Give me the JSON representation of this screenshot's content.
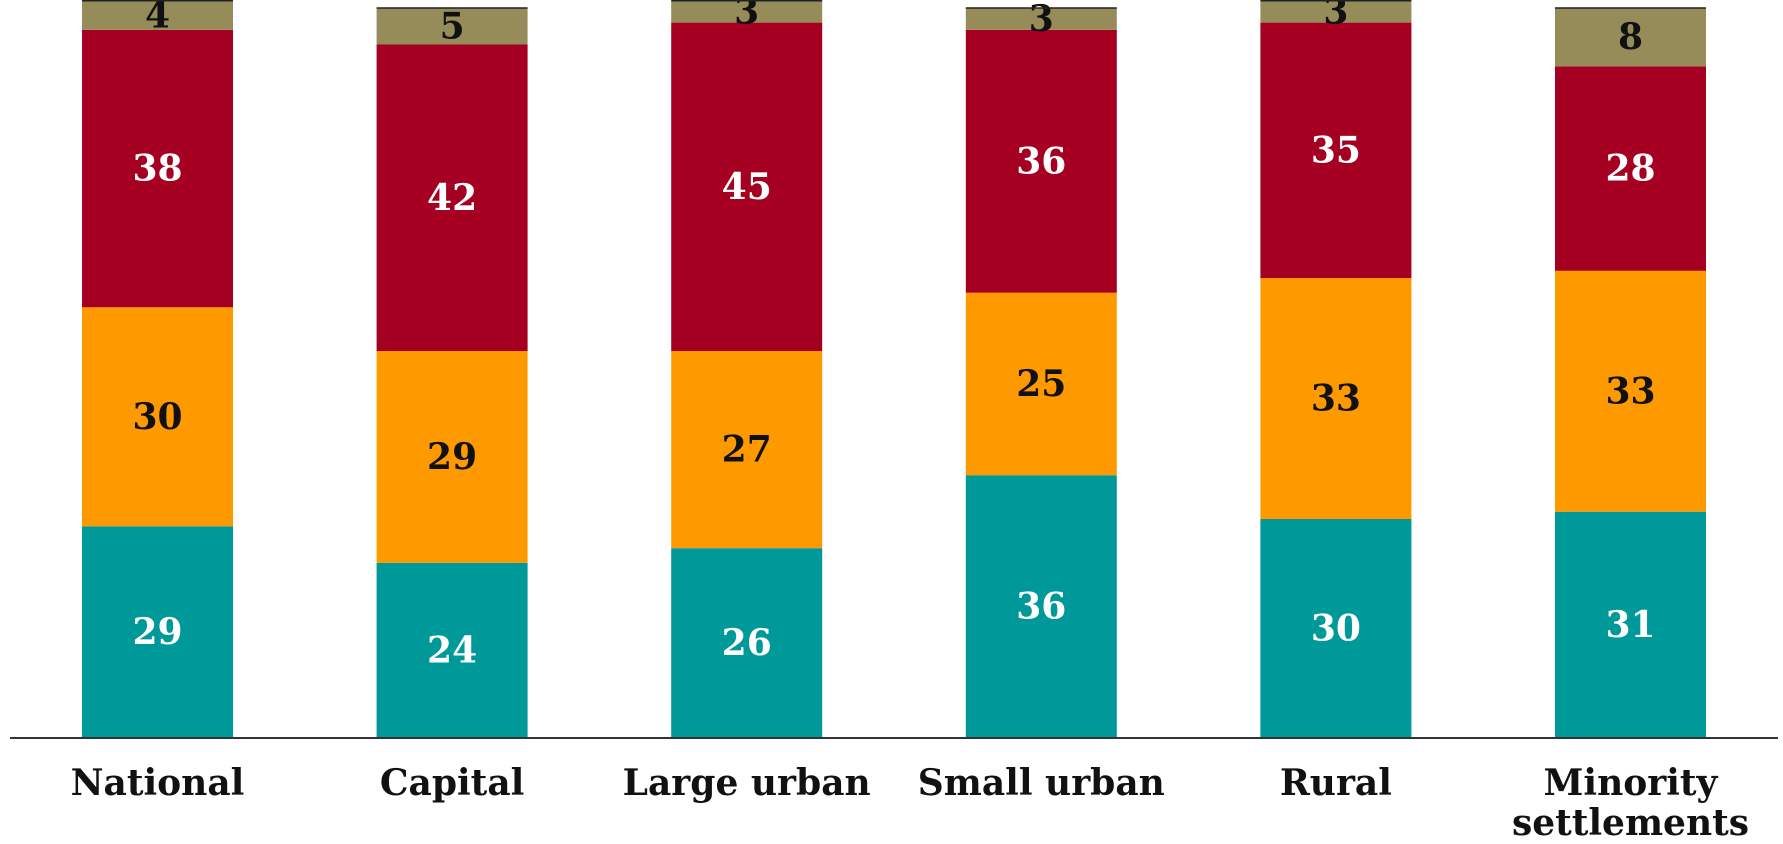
{
  "chart_data": {
    "type": "bar",
    "stacked": true,
    "orientation": "vertical",
    "categories": [
      [
        "National"
      ],
      [
        "Capital"
      ],
      [
        "Large urban"
      ],
      [
        "Small urban"
      ],
      [
        "Rural"
      ],
      [
        "Minority",
        "settlements"
      ]
    ],
    "series": [
      {
        "values": [
          29,
          24,
          26,
          36,
          30,
          31
        ],
        "color": "#009999",
        "label_color": "#ffffff"
      },
      {
        "values": [
          30,
          29,
          27,
          25,
          33,
          33
        ],
        "color": "#ff9900",
        "label_color": "#111111"
      },
      {
        "values": [
          38,
          42,
          45,
          36,
          35,
          28
        ],
        "color": "#a50021",
        "label_color": "#ffffff"
      },
      {
        "values": [
          4,
          5,
          3,
          3,
          3,
          8
        ],
        "color": "#968c5a",
        "label_color": "#111111"
      }
    ],
    "ylim": [
      0,
      100
    ],
    "grid": false,
    "legend": "none"
  }
}
